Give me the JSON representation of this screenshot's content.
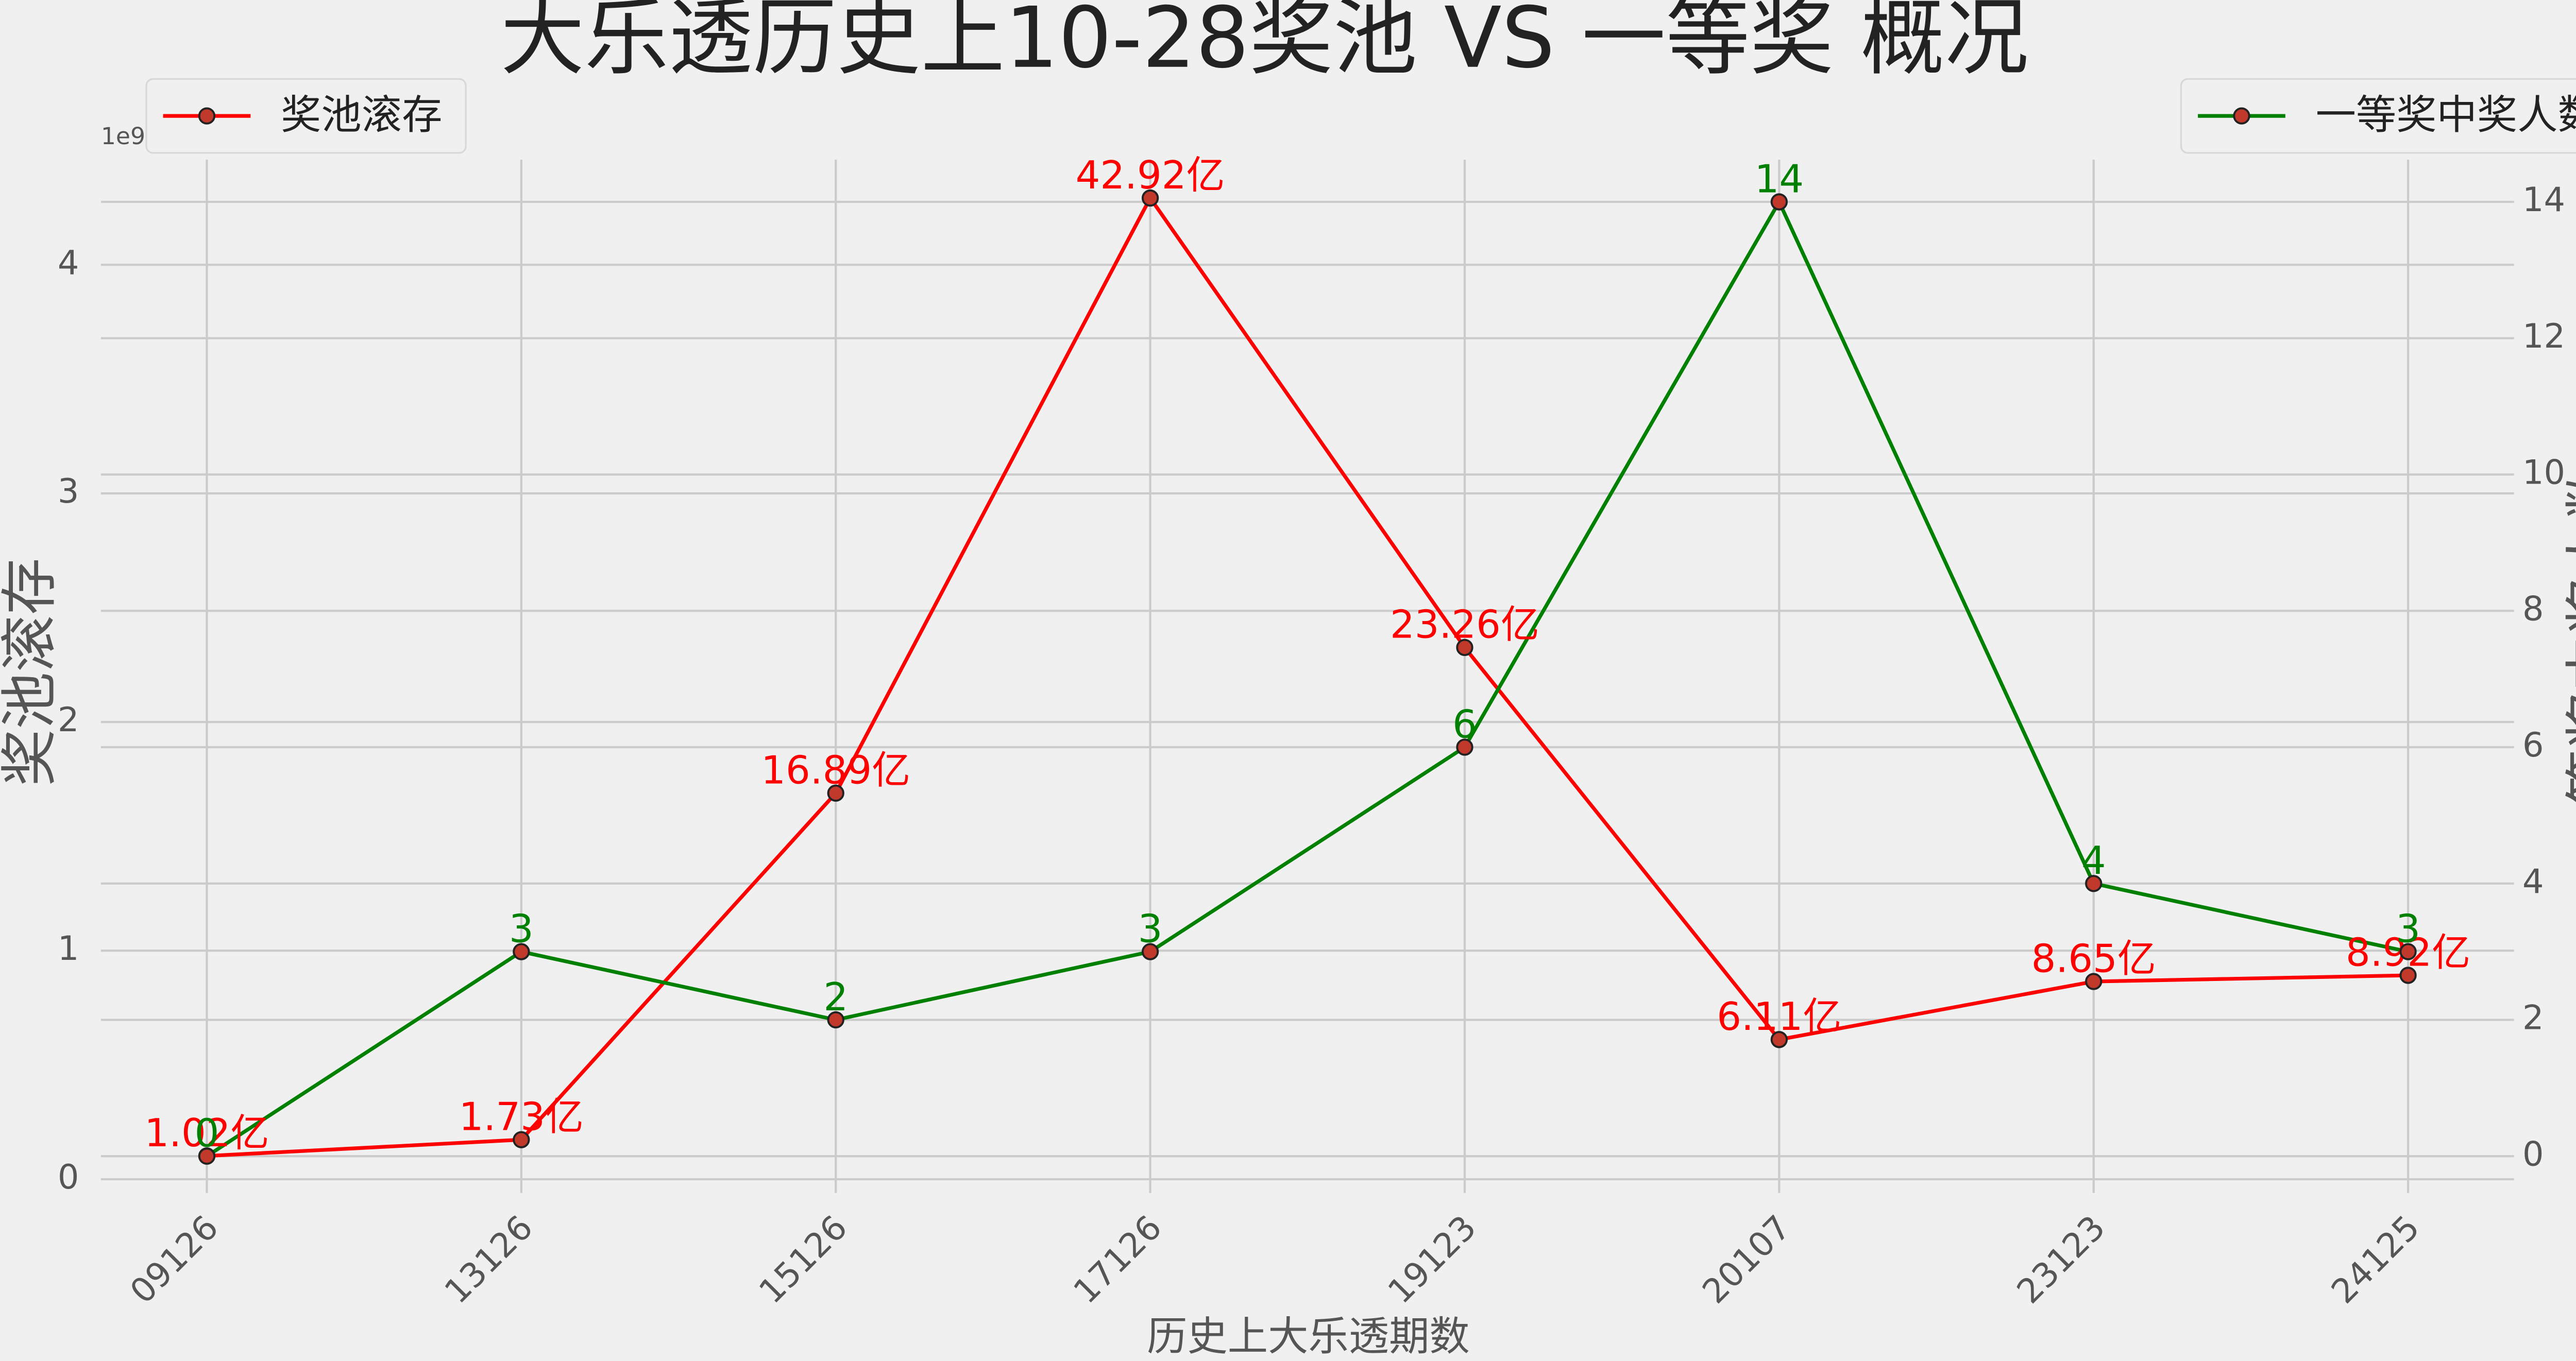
{
  "chart_data": {
    "type": "line",
    "title": "大乐透历史上10-28奖池 VS 一等奖 概况",
    "x_label": "历史上大乐透期数",
    "y_label": "奖池滚存",
    "y2_label": "一等奖中奖人数",
    "y_offset_text": "1e9",
    "categories": [
      "09126",
      "13126",
      "15126",
      "17126",
      "19123",
      "20107",
      "23123",
      "24125"
    ],
    "series": [
      {
        "name": "奖池滚存",
        "color": "#ff0000",
        "legend_loc": "upper left",
        "values": [
          102000000,
          173000000,
          1689000000,
          4292000000,
          2326000000,
          611000000,
          865000000,
          892000000
        ],
        "value_labels": [
          "1.02亿",
          "1.73亿",
          "16.89亿",
          "42.92亿",
          "23.26亿",
          "6.11亿",
          "8.65亿",
          "8.92亿"
        ]
      },
      {
        "name": "一等奖中奖人数",
        "color": "#008000",
        "axis": "y2",
        "legend_loc": "upper right",
        "values": [
          0,
          3,
          2,
          3,
          6,
          14,
          4,
          3
        ]
      }
    ],
    "ylim": [
      -60000000,
      4460000000
    ],
    "yticks": [
      {
        "value": 0,
        "label": "0"
      },
      {
        "value": 1000000000,
        "label": "1"
      },
      {
        "value": 2000000000,
        "label": "2"
      },
      {
        "value": 3000000000,
        "label": "3"
      },
      {
        "value": 4000000000,
        "label": "4"
      }
    ],
    "y2lim": [
      -0.54,
      14.62
    ],
    "y2ticks": [
      0,
      2,
      4,
      6,
      8,
      10,
      12,
      14
    ],
    "grid": true
  }
}
